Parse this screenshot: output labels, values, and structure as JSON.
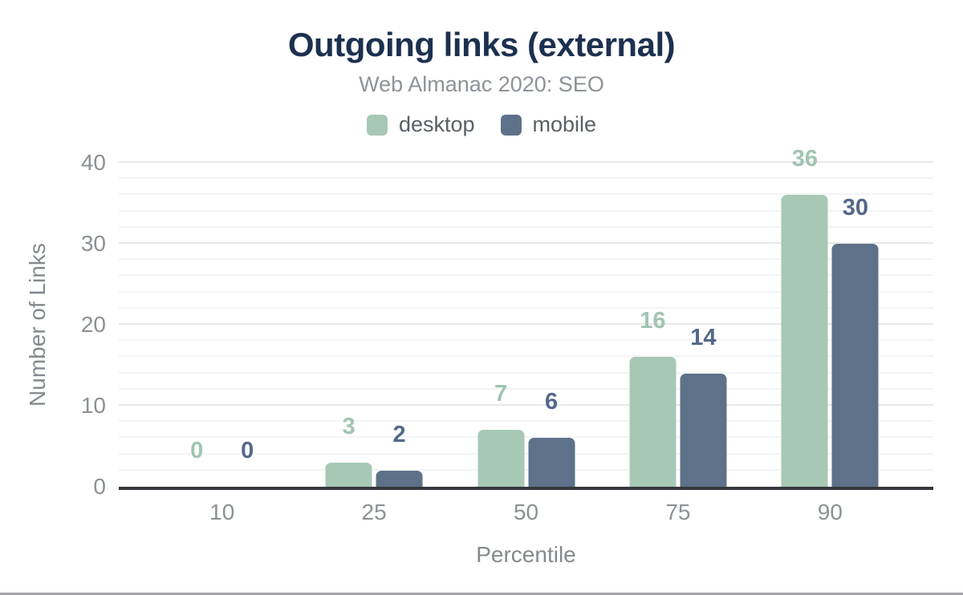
{
  "chart_data": {
    "type": "bar",
    "title": "Outgoing links (external)",
    "subtitle": "Web Almanac 2020: SEO",
    "xlabel": "Percentile",
    "ylabel": "Number of Links",
    "categories": [
      "10",
      "25",
      "50",
      "75",
      "90"
    ],
    "series": [
      {
        "name": "desktop",
        "color": "#a6c8b5",
        "label_color": "#a0c4b0",
        "values": [
          0,
          3,
          7,
          16,
          36
        ]
      },
      {
        "name": "mobile",
        "color": "#5e7189",
        "label_color": "#54688a",
        "values": [
          0,
          2,
          6,
          14,
          30
        ]
      }
    ],
    "ylim": [
      0,
      40
    ],
    "y_ticks": [
      0,
      10,
      20,
      30,
      40
    ],
    "y_minor_step": 2,
    "grid": true,
    "legend_position": "top"
  },
  "theme": {
    "title_color": "#1c3050",
    "subtitle_color": "#8d9398",
    "legend_color": "#5a6065",
    "tick_color": "#8b9196",
    "axis_title_color": "#83898f",
    "axis_line_color": "#37383d",
    "grid_major": "#e7e8ea",
    "grid_minor": "#f3f4f6",
    "bottom_bar": "#a3a3a8"
  }
}
